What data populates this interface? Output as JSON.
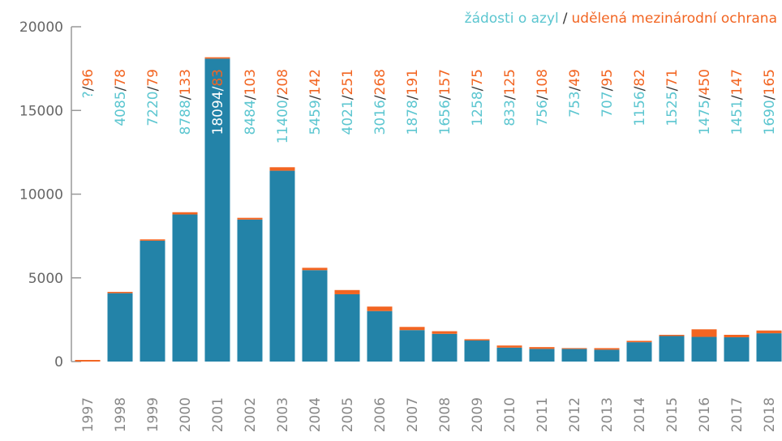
{
  "chart_data": {
    "type": "bar",
    "stacked": true,
    "label_separator": "/",
    "categories": [
      "1997",
      "1998",
      "1999",
      "2000",
      "2001",
      "2002",
      "2003",
      "2004",
      "2005",
      "2006",
      "2007",
      "2008",
      "2009",
      "2010",
      "2011",
      "2012",
      "2013",
      "2014",
      "2015",
      "2016",
      "2017",
      "2018"
    ],
    "series": [
      {
        "name": "žádosti o azyl",
        "color": "#2383a8",
        "label_color": "#5cc6d0",
        "values": [
          null,
          4085,
          7220,
          8788,
          18094,
          8484,
          11400,
          5459,
          4021,
          3016,
          1878,
          1656,
          1258,
          833,
          756,
          753,
          707,
          1156,
          1525,
          1475,
          1451,
          1690
        ],
        "value_labels": [
          "?",
          "4085",
          "7220",
          "8788",
          "18094",
          "8484",
          "11400",
          "5459",
          "4021",
          "3016",
          "1878",
          "1656",
          "1258",
          "833",
          "756",
          "753",
          "707",
          "1156",
          "1525",
          "1475",
          "1451",
          "1690"
        ]
      },
      {
        "name": "udělená mezinárodní ochrana",
        "color": "#f26522",
        "label_color": "#f26522",
        "values": [
          96,
          78,
          79,
          133,
          83,
          103,
          208,
          142,
          251,
          268,
          191,
          157,
          75,
          125,
          108,
          49,
          95,
          82,
          71,
          450,
          147,
          165
        ]
      }
    ],
    "ylim": [
      0,
      20000
    ],
    "yticks": [
      0,
      5000,
      10000,
      15000,
      20000
    ]
  }
}
